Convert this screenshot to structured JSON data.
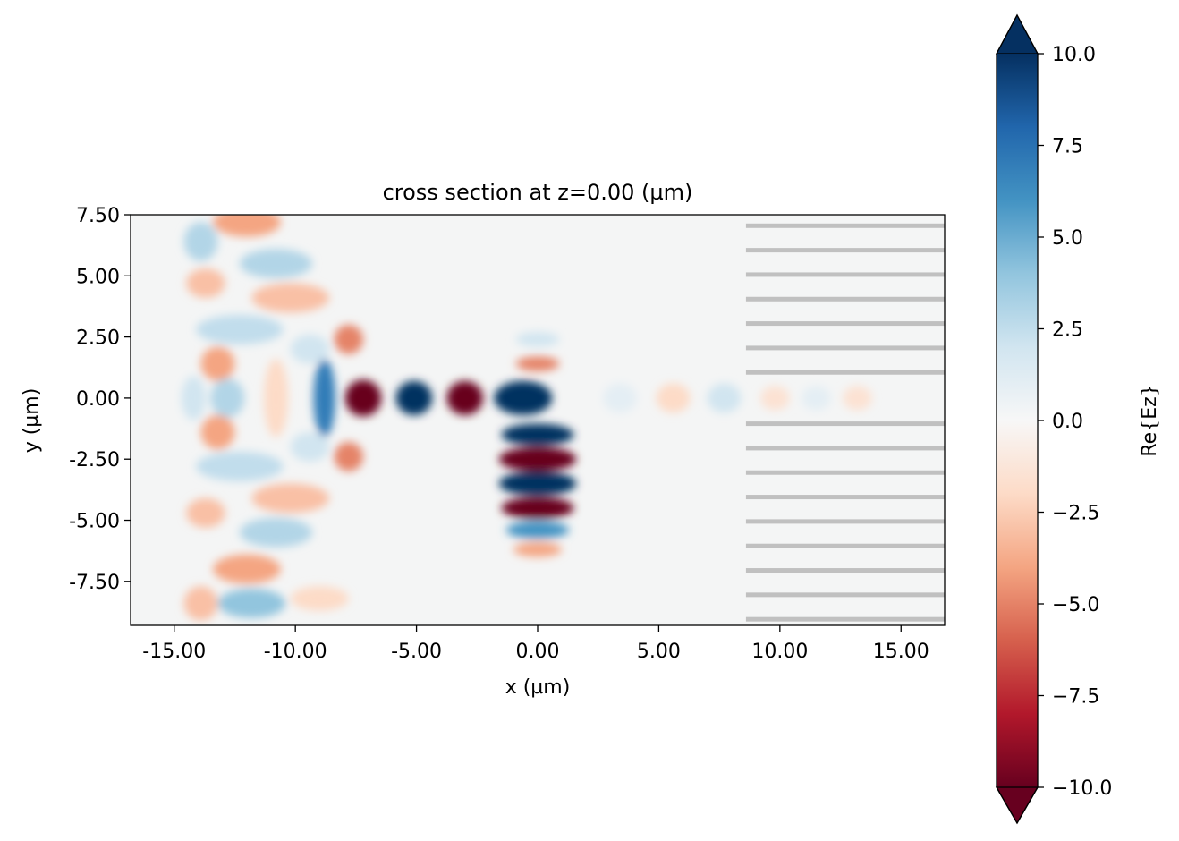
{
  "chart_data": {
    "type": "heatmap",
    "title": "cross section at z=0.00 (µm)",
    "xlabel": "x (µm)",
    "ylabel": "y (µm)",
    "xlim": [
      -16.8,
      16.8
    ],
    "ylim": [
      -9.3,
      7.5
    ],
    "x_ticks": [
      {
        "value": -15,
        "label": "-15.00"
      },
      {
        "value": -10,
        "label": "-10.00"
      },
      {
        "value": -5,
        "label": "-5.00"
      },
      {
        "value": 0,
        "label": "0.00"
      },
      {
        "value": 5,
        "label": "5.00"
      },
      {
        "value": 10,
        "label": "10.00"
      },
      {
        "value": 15,
        "label": "15.00"
      }
    ],
    "y_ticks": [
      {
        "value": 7.5,
        "label": "7.50"
      },
      {
        "value": 5,
        "label": "5.00"
      },
      {
        "value": 2.5,
        "label": "2.50"
      },
      {
        "value": 0,
        "label": "0.00"
      },
      {
        "value": -2.5,
        "label": "-2.50"
      },
      {
        "value": -5,
        "label": "-5.00"
      },
      {
        "value": -7.5,
        "label": "-7.50"
      }
    ],
    "colorbar": {
      "label": "Re{Ez}",
      "colormap": "RdBu",
      "vmin": -10,
      "vmax": 10,
      "extend": "both",
      "ticks": [
        {
          "value": 10,
          "label": "10.0"
        },
        {
          "value": 7.5,
          "label": "7.5"
        },
        {
          "value": 5,
          "label": "5.0"
        },
        {
          "value": 2.5,
          "label": "2.5"
        },
        {
          "value": 0,
          "label": "0.0"
        },
        {
          "value": -2.5,
          "label": "−2.5"
        },
        {
          "value": -5,
          "label": "−5.0"
        },
        {
          "value": -7.5,
          "label": "−7.5"
        },
        {
          "value": -10,
          "label": "−10.0"
        }
      ]
    },
    "field_blobs": [
      {
        "x": -7.2,
        "y": 0.0,
        "value": -10,
        "rx": 0.75,
        "ry": 0.75
      },
      {
        "x": -5.1,
        "y": 0.0,
        "value": 10,
        "rx": 0.75,
        "ry": 0.7
      },
      {
        "x": -3.0,
        "y": 0.0,
        "value": -10,
        "rx": 0.75,
        "ry": 0.7
      },
      {
        "x": -0.6,
        "y": 0.0,
        "value": 10,
        "rx": 1.2,
        "ry": 0.7
      },
      {
        "x": -8.8,
        "y": 0.0,
        "value": 7,
        "rx": 0.45,
        "ry": 1.6
      },
      {
        "x": -7.8,
        "y": 2.4,
        "value": -5,
        "rx": 0.6,
        "ry": 0.6
      },
      {
        "x": -7.8,
        "y": -2.4,
        "value": -5,
        "rx": 0.6,
        "ry": 0.6
      },
      {
        "x": 0.0,
        "y": -1.5,
        "value": 10,
        "rx": 1.5,
        "ry": 0.45
      },
      {
        "x": 0.0,
        "y": -2.5,
        "value": -10,
        "rx": 1.6,
        "ry": 0.5
      },
      {
        "x": 0.0,
        "y": -3.5,
        "value": 10,
        "rx": 1.6,
        "ry": 0.5
      },
      {
        "x": 0.0,
        "y": -4.5,
        "value": -10,
        "rx": 1.5,
        "ry": 0.45
      },
      {
        "x": 0.0,
        "y": -5.4,
        "value": 6,
        "rx": 1.3,
        "ry": 0.35
      },
      {
        "x": 0.0,
        "y": -6.2,
        "value": -4,
        "rx": 1.0,
        "ry": 0.3
      },
      {
        "x": 0.0,
        "y": 1.4,
        "value": -5,
        "rx": 0.9,
        "ry": 0.3
      },
      {
        "x": 0.0,
        "y": 2.4,
        "value": 2,
        "rx": 0.9,
        "ry": 0.3
      },
      {
        "x": 3.4,
        "y": 0.0,
        "value": 1,
        "rx": 0.7,
        "ry": 0.6
      },
      {
        "x": 5.6,
        "y": 0.0,
        "value": -2,
        "rx": 0.7,
        "ry": 0.6
      },
      {
        "x": 7.7,
        "y": 0.0,
        "value": 2,
        "rx": 0.7,
        "ry": 0.6
      },
      {
        "x": 9.8,
        "y": 0.0,
        "value": -1.5,
        "rx": 0.6,
        "ry": 0.5
      },
      {
        "x": 11.5,
        "y": 0.0,
        "value": 1,
        "rx": 0.6,
        "ry": 0.5
      },
      {
        "x": 13.2,
        "y": 0.0,
        "value": -1.5,
        "rx": 0.6,
        "ry": 0.5
      },
      {
        "x": -12.0,
        "y": 7.2,
        "value": -4,
        "rx": 1.4,
        "ry": 0.6
      },
      {
        "x": -10.8,
        "y": 5.5,
        "value": 3,
        "rx": 1.5,
        "ry": 0.6
      },
      {
        "x": -13.9,
        "y": 6.4,
        "value": 3,
        "rx": 0.7,
        "ry": 0.8
      },
      {
        "x": -13.7,
        "y": 4.7,
        "value": -3,
        "rx": 0.8,
        "ry": 0.6
      },
      {
        "x": -10.2,
        "y": 4.1,
        "value": -3,
        "rx": 1.6,
        "ry": 0.6
      },
      {
        "x": -12.3,
        "y": 2.8,
        "value": 2.5,
        "rx": 1.8,
        "ry": 0.6
      },
      {
        "x": -13.2,
        "y": 1.4,
        "value": -4,
        "rx": 0.7,
        "ry": 0.7
      },
      {
        "x": -12.8,
        "y": 0.0,
        "value": 3,
        "rx": 0.7,
        "ry": 0.8
      },
      {
        "x": -10.8,
        "y": 0.0,
        "value": -2,
        "rx": 0.5,
        "ry": 1.6
      },
      {
        "x": -14.2,
        "y": 0.0,
        "value": 2,
        "rx": 0.5,
        "ry": 0.9
      },
      {
        "x": -13.2,
        "y": -1.4,
        "value": -4,
        "rx": 0.7,
        "ry": 0.7
      },
      {
        "x": -12.3,
        "y": -2.8,
        "value": 2.5,
        "rx": 1.8,
        "ry": 0.6
      },
      {
        "x": -10.2,
        "y": -4.1,
        "value": -3,
        "rx": 1.6,
        "ry": 0.6
      },
      {
        "x": -13.7,
        "y": -4.7,
        "value": -3,
        "rx": 0.8,
        "ry": 0.6
      },
      {
        "x": -10.8,
        "y": -5.5,
        "value": 3,
        "rx": 1.5,
        "ry": 0.6
      },
      {
        "x": -12.0,
        "y": -7.0,
        "value": -4,
        "rx": 1.4,
        "ry": 0.6
      },
      {
        "x": -11.8,
        "y": -8.4,
        "value": 4,
        "rx": 1.4,
        "ry": 0.6
      },
      {
        "x": -13.9,
        "y": -8.4,
        "value": -3,
        "rx": 0.7,
        "ry": 0.7
      },
      {
        "x": -9.0,
        "y": -8.2,
        "value": -2,
        "rx": 1.2,
        "ry": 0.5
      },
      {
        "x": -9.4,
        "y": 2.0,
        "value": 2,
        "rx": 0.8,
        "ry": 0.6
      },
      {
        "x": -9.4,
        "y": -2.0,
        "value": 2,
        "rx": 0.8,
        "ry": 0.6
      }
    ],
    "structures": {
      "color": "#c0c0c0",
      "x_start": 8.6,
      "x_end": 16.8,
      "line_y": [
        7.05,
        6.05,
        5.05,
        4.05,
        3.05,
        2.05,
        1.05,
        -1.05,
        -2.05,
        -3.05,
        -4.05,
        -5.05,
        -6.05,
        -7.05,
        -8.05,
        -9.05
      ]
    }
  }
}
